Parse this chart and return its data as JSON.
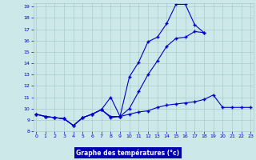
{
  "title": "Graphe des températures (°c)",
  "bg_color": "#cce8e8",
  "plot_bg": "#cce8e8",
  "grid_color": "#aacaca",
  "line_color": "#0000cc",
  "xlabel_bg": "#0000aa",
  "xlabel_fg": "#ffffff",
  "x_min": 0,
  "x_max": 23,
  "y_min": 8,
  "y_max": 19,
  "series1_x": [
    0,
    1,
    2,
    3,
    4,
    5,
    6,
    7,
    8,
    9,
    10,
    11,
    12,
    13,
    14,
    15,
    16,
    17,
    18,
    19,
    20,
    21,
    22,
    23
  ],
  "series1_y": [
    9.5,
    9.3,
    9.2,
    9.1,
    8.5,
    9.2,
    9.5,
    9.9,
    9.2,
    9.3,
    9.5,
    9.7,
    9.8,
    10.1,
    10.3,
    10.4,
    10.5,
    10.6,
    10.8,
    11.2,
    10.1,
    10.1,
    10.1,
    10.1
  ],
  "series2_x": [
    0,
    1,
    2,
    3,
    4,
    5,
    6,
    7,
    8,
    9,
    10,
    11,
    12,
    13,
    14,
    15,
    16,
    17,
    18
  ],
  "series2_y": [
    9.5,
    9.3,
    9.2,
    9.1,
    8.5,
    9.2,
    9.5,
    9.9,
    11.0,
    9.3,
    12.8,
    14.1,
    15.9,
    16.3,
    17.5,
    19.2,
    19.2,
    17.4,
    16.7
  ],
  "series3_x": [
    0,
    1,
    2,
    3,
    4,
    5,
    6,
    7,
    8,
    9,
    10,
    11,
    12,
    13,
    14,
    15,
    16,
    17,
    18
  ],
  "series3_y": [
    9.5,
    9.3,
    9.2,
    9.1,
    8.5,
    9.2,
    9.5,
    9.9,
    9.3,
    9.3,
    10.0,
    11.5,
    13.0,
    14.2,
    15.5,
    16.2,
    16.3,
    16.8,
    16.7
  ]
}
